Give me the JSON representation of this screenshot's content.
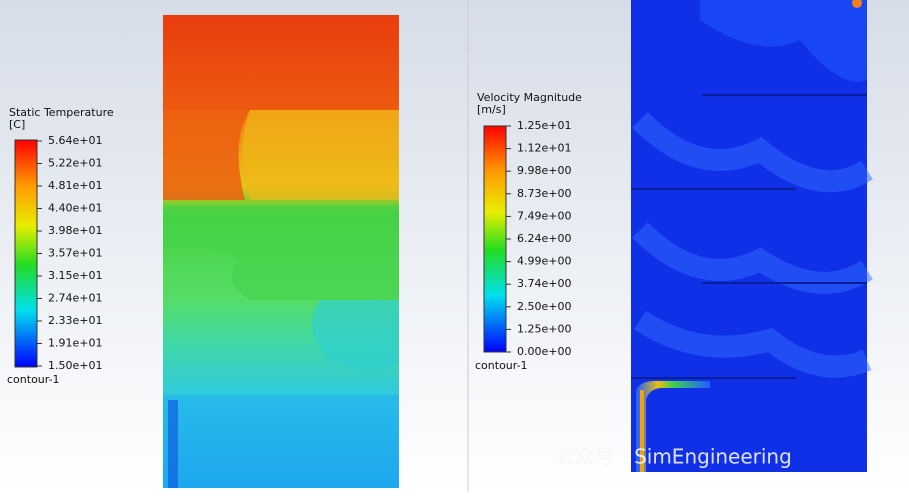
{
  "panels": [
    {
      "legend_title": "Static Temperature",
      "unit": "[C]",
      "labels": [
        "5.64e+01",
        "5.22e+01",
        "4.81e+01",
        "4.40e+01",
        "3.98e+01",
        "3.57e+01",
        "3.15e+01",
        "2.74e+01",
        "2.33e+01",
        "1.91e+01",
        "1.50e+01"
      ],
      "footer": "contour-1"
    },
    {
      "legend_title": "Velocity Magnitude",
      "unit": "[m/s]",
      "labels": [
        "1.25e+01",
        "1.12e+01",
        "9.98e+00",
        "8.73e+00",
        "7.49e+00",
        "6.24e+00",
        "4.99e+00",
        "3.74e+00",
        "2.50e+00",
        "1.25e+00",
        "0.00e+00"
      ],
      "footer": "contour-1"
    }
  ],
  "watermark": "公众号 · SimEngineering"
}
